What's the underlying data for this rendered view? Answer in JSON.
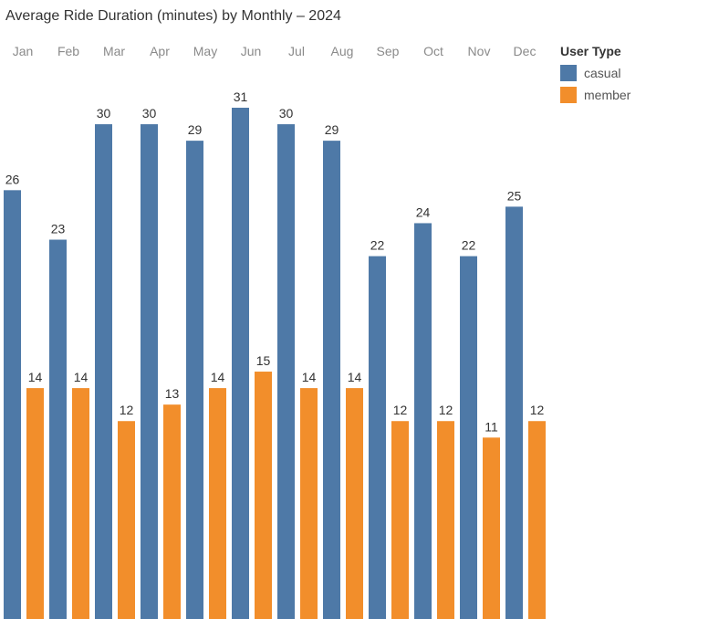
{
  "chart_data": {
    "type": "bar",
    "title": "Average Ride Duration (minutes) by Monthly – 2024",
    "xlabel": "",
    "ylabel": "",
    "categories": [
      "Jan",
      "Feb",
      "Mar",
      "Apr",
      "May",
      "Jun",
      "Jul",
      "Aug",
      "Sep",
      "Oct",
      "Nov",
      "Dec"
    ],
    "series": [
      {
        "name": "casual",
        "color": "#4e79a7",
        "values": [
          26,
          23,
          30,
          30,
          29,
          31,
          30,
          29,
          22,
          24,
          22,
          25
        ]
      },
      {
        "name": "member",
        "color": "#f28e2b",
        "values": [
          14,
          14,
          12,
          13,
          14,
          15,
          14,
          14,
          12,
          12,
          11,
          12
        ]
      }
    ],
    "ylim": [
      0,
      31
    ],
    "grid": false,
    "legend": {
      "title": "User Type",
      "placement": "top-right"
    }
  }
}
